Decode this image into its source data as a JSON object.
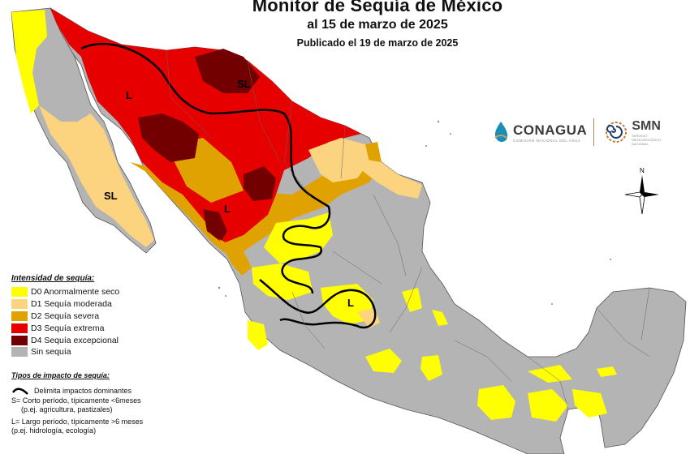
{
  "header": {
    "title": "Monitor de Sequía de México",
    "date": "al 15 de marzo de 2025",
    "published": "Publicado el 19 de marzo de 2025"
  },
  "colors": {
    "D0": "#ffff00",
    "D1": "#fcd37f",
    "D2": "#e0a200",
    "D3": "#e60000",
    "D4": "#730000",
    "none": "#b4b4b4",
    "water": "#ffffff"
  },
  "legend": {
    "title": "Intensidad de sequía:",
    "items": [
      {
        "color": "#ffff00",
        "label": "D0 Anormalmente seco"
      },
      {
        "color": "#fcd37f",
        "label": "D1 Sequía moderada"
      },
      {
        "color": "#e0a200",
        "label": "D2 Sequía severa"
      },
      {
        "color": "#e60000",
        "label": "D3 Sequía extrema"
      },
      {
        "color": "#730000",
        "label": "D4 Sequía excepcional"
      },
      {
        "color": "#b4b4b4",
        "label": "Sin sequía"
      }
    ]
  },
  "impact": {
    "title": "Tipos de impacto de sequía:",
    "line_label": "Delimita impactos dominantes",
    "short": "S= Corto período, típicamente <6meses",
    "short_eg": "(p.ej. agricultura, pastizales)",
    "long": "L= Largo período, típicamente >6 meses",
    "long_eg": "(p.ej. hidrología, ecología)"
  },
  "map_labels": {
    "sl_north": "SL",
    "l_northwest": "L",
    "sl_baja": "SL",
    "l_central": "L",
    "l_bajio": "L"
  },
  "logos": {
    "conagua": "CONAGUA",
    "conagua_sub": "COMISIÓN NACIONAL DEL AGUA",
    "smn": "SMN",
    "smn_sub1": "SERVICIO",
    "smn_sub2": "METEOROLÓGICO",
    "smn_sub3": "NACIONAL"
  },
  "compass": {
    "north": "N"
  }
}
